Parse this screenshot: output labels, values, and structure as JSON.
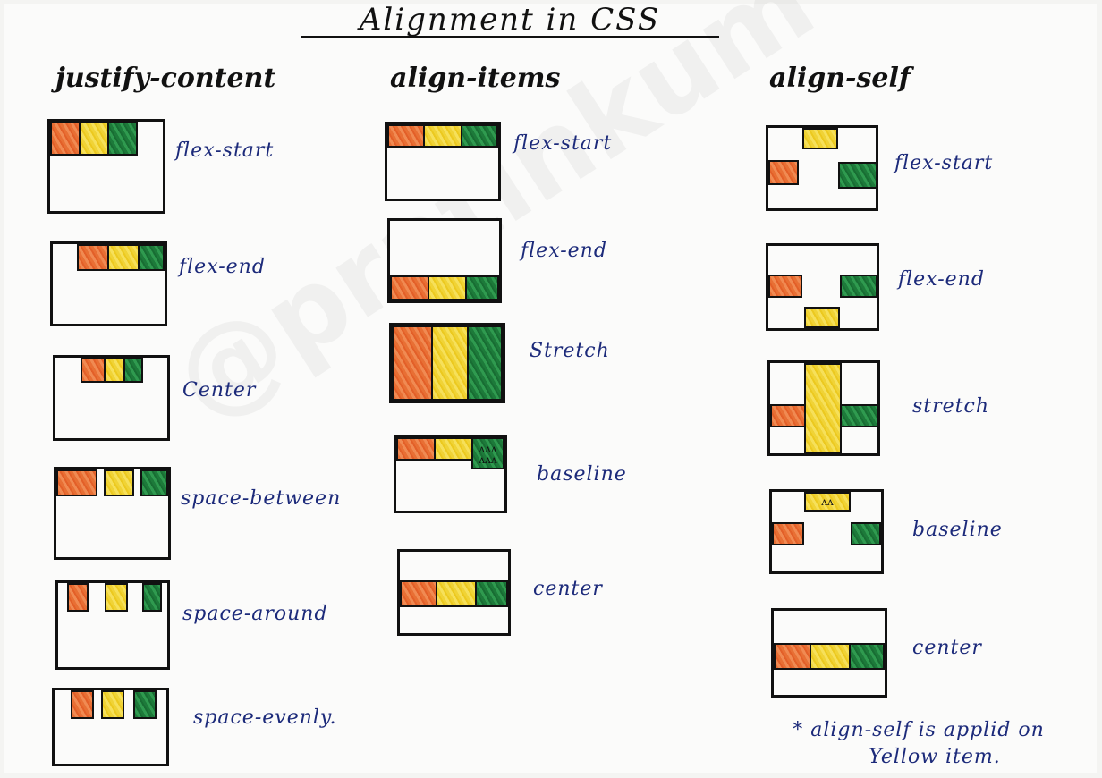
{
  "title": "Alignment in CSS",
  "watermark": "@pratinkum",
  "columns": {
    "justify_content": {
      "heading": "justify-content",
      "items": [
        "flex-start",
        "flex-end",
        "Center",
        "space-between",
        "space-around",
        "space-evenly."
      ]
    },
    "align_items": {
      "heading": "align-items",
      "items": [
        "flex-start",
        "flex-end",
        "Stretch",
        "baseline",
        "center"
      ]
    },
    "align_self": {
      "heading": "align-self",
      "items": [
        "flex-start",
        "flex-end",
        "stretch",
        "baseline",
        "center"
      ]
    }
  },
  "note": {
    "line1": "* align-self is applid on",
    "line2": "Yellow item."
  },
  "colors": {
    "orange": "#e86f34",
    "yellow": "#f0d336",
    "green": "#1d7a3a",
    "ink": "#1c2a7a"
  }
}
